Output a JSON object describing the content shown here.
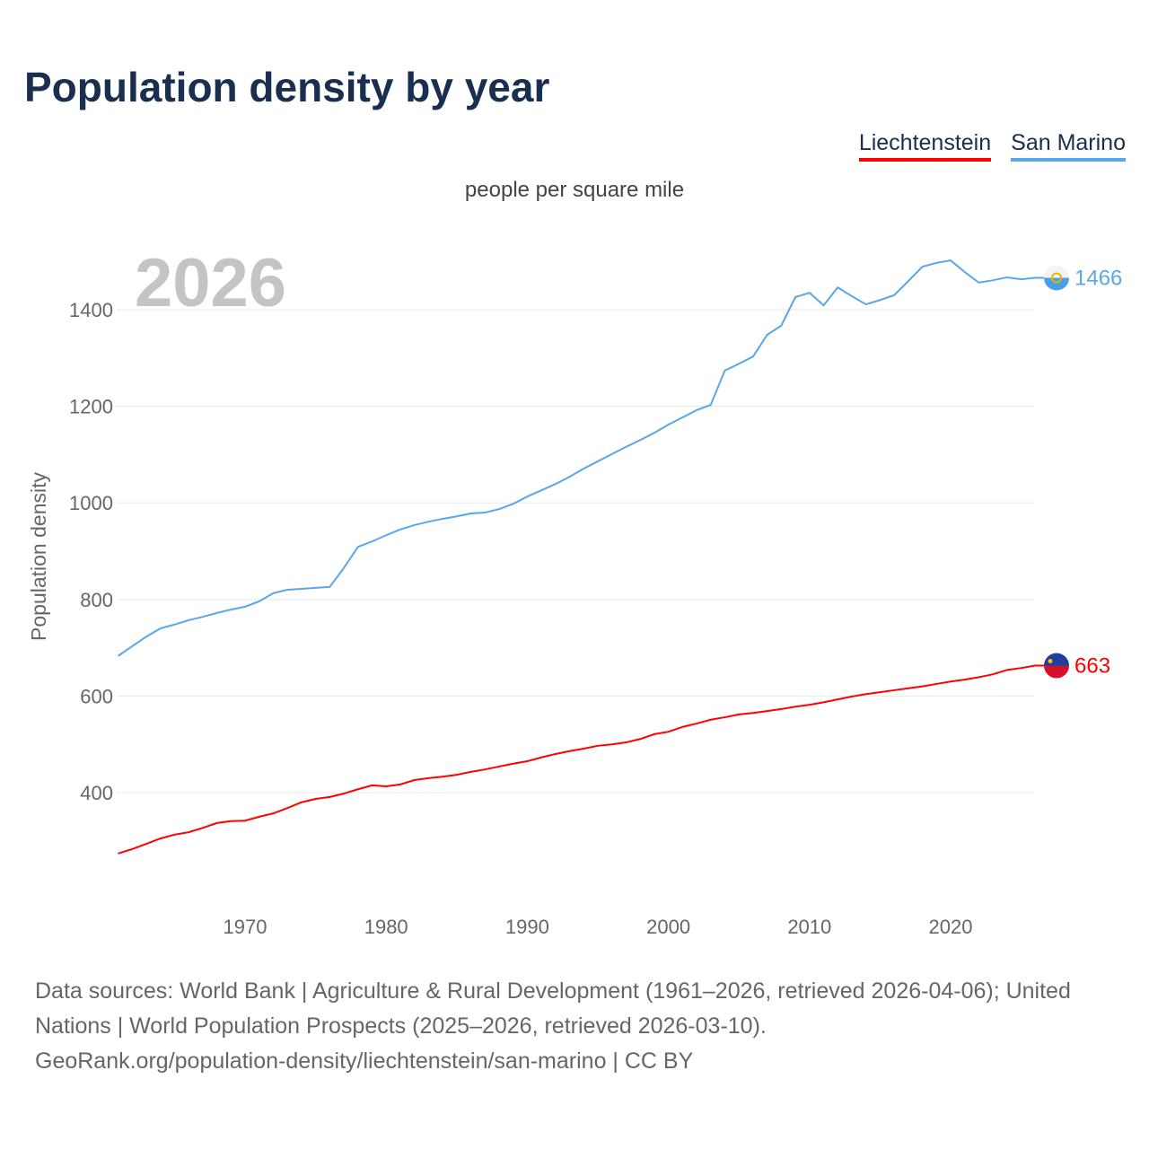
{
  "title": "Population density by year",
  "subtitle": "people per square mile",
  "year_label": "2026",
  "legend": [
    {
      "name": "Liechtenstein",
      "color": "#ff0000"
    },
    {
      "name": "San Marino",
      "color": "#5aa6ea"
    }
  ],
  "source": {
    "line1": "Data sources: World Bank | Agriculture & Rural Development (1961–2026, retrieved 2026-04-06); United Nations | World Population Prospects (2025–2026, retrieved 2026-03-10).",
    "line2": "GeoRank.org/population-density/liechtenstein/san-marino | CC BY"
  },
  "chart_data": {
    "type": "line",
    "title": "Population density by year",
    "xlabel": "",
    "ylabel": "Population density",
    "xlim": [
      1961,
      2026
    ],
    "ylim": [
      165,
      1520
    ],
    "xticks": [
      1970,
      1980,
      1990,
      2000,
      2010,
      2020
    ],
    "yticks": [
      400,
      600,
      800,
      1000,
      1200,
      1400
    ],
    "x_start": 1961,
    "series": [
      {
        "name": "Liechtenstein",
        "color": "#ff0000",
        "end_label": "663",
        "values": [
          274,
          283,
          294,
          305,
          313,
          318,
          327,
          337,
          341,
          342,
          350,
          357,
          368,
          380,
          387,
          391,
          398,
          407,
          415,
          413,
          417,
          426,
          430,
          433,
          437,
          443,
          448,
          454,
          460,
          465,
          473,
          480,
          486,
          491,
          497,
          500,
          504,
          511,
          521,
          526,
          536,
          543,
          551,
          556,
          562,
          565,
          569,
          573,
          578,
          582,
          587,
          593,
          599,
          604,
          608,
          612,
          616,
          620,
          625,
          630,
          634,
          639,
          645,
          654,
          658,
          663
        ]
      },
      {
        "name": "San Marino",
        "color": "#5aa6ea",
        "end_label": "1466",
        "values": [
          683,
          703,
          723,
          740,
          748,
          757,
          764,
          772,
          779,
          785,
          796,
          813,
          820,
          822,
          824,
          826,
          865,
          909,
          920,
          933,
          945,
          954,
          961,
          967,
          972,
          978,
          980,
          987,
          998,
          1013,
          1026,
          1039,
          1054,
          1071,
          1086,
          1101,
          1116,
          1130,
          1145,
          1162,
          1177,
          1192,
          1203,
          1274,
          1288,
          1303,
          1348,
          1367,
          1426,
          1435,
          1409,
          1446,
          1428,
          1411,
          1420,
          1430,
          1459,
          1489,
          1497,
          1502,
          1478,
          1456,
          1461,
          1467,
          1463,
          1466
        ]
      }
    ]
  }
}
